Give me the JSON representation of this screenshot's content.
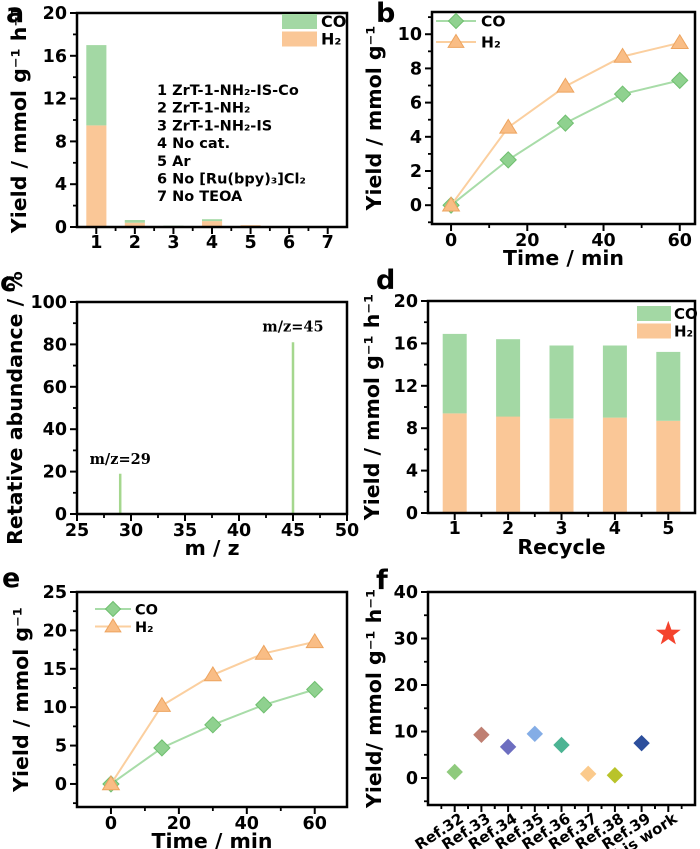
{
  "panels": [
    {
      "letter": "a"
    },
    {
      "letter": "b"
    },
    {
      "letter": "c"
    },
    {
      "letter": "d"
    },
    {
      "letter": "e"
    },
    {
      "letter": "f"
    }
  ],
  "colors": {
    "co_green": "#a3d8a4",
    "h2_orange": "#fac797",
    "frame_black": "#000000",
    "highlight_star_red": "#f4432d"
  },
  "chart_data": [
    {
      "panel": "a",
      "type": "bar",
      "categories": [
        "1",
        "2",
        "3",
        "4",
        "5",
        "6",
        "7"
      ],
      "series": [
        {
          "name": "H₂",
          "color": "#fac797",
          "values": [
            9.5,
            0.4,
            0.06,
            0.55,
            0.18,
            0,
            0
          ]
        },
        {
          "name": "CO",
          "color": "#a3d8a4",
          "values": [
            7.5,
            0.25,
            0.06,
            0.18,
            0,
            0,
            0
          ]
        }
      ],
      "bar_ratio": 0.52,
      "ylim": [
        0,
        20
      ],
      "yticks": [
        0,
        4,
        8,
        12,
        16,
        20
      ],
      "ylabel": "Yield / mmol g⁻¹ h⁻¹",
      "xlabel": "",
      "legend": {
        "style": "swatch",
        "entries": [
          {
            "label": "CO",
            "color": "#a3d8a4"
          },
          {
            "label": "H₂",
            "color": "#fac797"
          }
        ]
      },
      "note_lines": [
        "1 ZrT-1-NH₂-IS-Co",
        "2 ZrT-1-NH₂",
        "3 ZrT-1-NH₂-IS",
        "4 No  cat.",
        "5 Ar",
        "6 No [Ru(bpy)₃]Cl₂",
        "7 No TEOA"
      ]
    },
    {
      "panel": "b",
      "type": "line",
      "x": [
        0,
        15,
        30,
        45,
        60
      ],
      "xlim": [
        -5,
        64
      ],
      "xticks": [
        0,
        20,
        40,
        60
      ],
      "ylim": [
        -1.1,
        11.3
      ],
      "yticks": [
        0,
        2,
        4,
        6,
        8,
        10
      ],
      "series": [
        {
          "name": "CO",
          "marker": "diamond",
          "color": "#8fd18f",
          "edge": "#6fbf6f",
          "line_color": "#a8dca8",
          "values": [
            0,
            2.65,
            4.8,
            6.5,
            7.3
          ]
        },
        {
          "name": "H₂",
          "marker": "triangle",
          "color": "#f9bd85",
          "edge": "#eda45f",
          "line_color": "#fbcf9f",
          "values": [
            0,
            4.55,
            6.95,
            8.7,
            9.5
          ]
        }
      ],
      "ylabel": "Yield / mmol g⁻¹",
      "xlabel": "Time / min",
      "legend": {
        "style": "line",
        "entries": [
          {
            "label": "CO",
            "marker": "diamond",
            "color": "#8fd18f",
            "edge": "#6fbf6f",
            "line_color": "#a8dca8"
          },
          {
            "label": "H₂",
            "marker": "triangle",
            "color": "#f9bd85",
            "edge": "#eda45f",
            "line_color": "#fbcf9f"
          }
        ]
      }
    },
    {
      "panel": "c",
      "type": "sticks",
      "xlim": [
        25,
        50
      ],
      "xticks": [
        25,
        30,
        35,
        40,
        45,
        50
      ],
      "ylim": [
        0,
        100
      ],
      "yticks": [
        0,
        20,
        40,
        60,
        80,
        100
      ],
      "stick_color": "#a5d78e",
      "peaks": [
        {
          "x": 29,
          "y": 19
        },
        {
          "x": 45,
          "y": 81
        }
      ],
      "annotations": [
        {
          "text": "m/z=29",
          "x": 29,
          "y": 23.5
        },
        {
          "text": "m/z=45",
          "x": 45,
          "y": 86
        }
      ],
      "ylabel": "Retative abundance / %",
      "xlabel": "m / z"
    },
    {
      "panel": "d",
      "type": "bar",
      "categories": [
        "1",
        "2",
        "3",
        "4",
        "5"
      ],
      "series": [
        {
          "name": "H₂",
          "color": "#fac797",
          "values": [
            9.4,
            9.1,
            8.9,
            9.0,
            8.7
          ]
        },
        {
          "name": "CO",
          "color": "#a3d8a4",
          "values": [
            7.5,
            7.3,
            6.9,
            6.8,
            6.5
          ]
        }
      ],
      "bar_ratio": 0.45,
      "ylim": [
        0,
        20
      ],
      "yticks": [
        0,
        4,
        8,
        12,
        16,
        20
      ],
      "ylabel": "Yield / mmol g⁻¹ h⁻¹",
      "xlabel": "Recycle",
      "legend": {
        "style": "swatch",
        "entries": [
          {
            "label": "CO",
            "color": "#a3d8a4"
          },
          {
            "label": "H₂",
            "color": "#fac797"
          }
        ]
      }
    },
    {
      "panel": "e",
      "type": "line",
      "x": [
        0,
        15,
        30,
        45,
        60
      ],
      "xlim": [
        -10,
        69.5
      ],
      "xticks": [
        0,
        20,
        40,
        60
      ],
      "ylim": [
        -3,
        25
      ],
      "yticks": [
        0,
        5,
        10,
        15,
        20,
        25
      ],
      "series": [
        {
          "name": "CO",
          "marker": "diamond",
          "color": "#8fd18f",
          "edge": "#6fbf6f",
          "line_color": "#a8dca8",
          "values": [
            0,
            4.7,
            7.7,
            10.3,
            12.3
          ]
        },
        {
          "name": "H₂",
          "marker": "triangle",
          "color": "#f9bd85",
          "edge": "#eda45f",
          "line_color": "#fbcf9f",
          "values": [
            0,
            10.2,
            14.2,
            17.0,
            18.5
          ]
        }
      ],
      "ylabel": "Yield / mmol g⁻¹",
      "xlabel": "Time / min",
      "legend": {
        "style": "line",
        "entries": [
          {
            "label": "CO",
            "marker": "diamond",
            "color": "#8fd18f",
            "edge": "#6fbf6f",
            "line_color": "#a8dca8"
          },
          {
            "label": "H₂",
            "marker": "triangle",
            "color": "#f9bd85",
            "edge": "#eda45f",
            "line_color": "#fbcf9f"
          }
        ]
      }
    },
    {
      "panel": "f",
      "type": "scatter",
      "xlim": [
        0,
        10
      ],
      "ylim": [
        -5.8,
        40
      ],
      "yticks": [
        0,
        10,
        20,
        30,
        40
      ],
      "points": [
        {
          "label": "Ref.32",
          "x": 1,
          "value": 1.3,
          "marker": "diamond",
          "color": "#8fca7d"
        },
        {
          "label": "Ref.33",
          "x": 2,
          "value": 9.3,
          "marker": "diamond",
          "color": "#bf7f72"
        },
        {
          "label": "Ref.34",
          "x": 3,
          "value": 6.7,
          "marker": "diamond",
          "color": "#6d6ec0"
        },
        {
          "label": "Ref.35",
          "x": 4,
          "value": 9.5,
          "marker": "diamond",
          "color": "#84ade6"
        },
        {
          "label": "Ref.36",
          "x": 5,
          "value": 7.1,
          "marker": "diamond",
          "color": "#4cb493"
        },
        {
          "label": "Ref.37",
          "x": 6,
          "value": 0.9,
          "marker": "diamond",
          "color": "#fbca8c"
        },
        {
          "label": "Ref.38",
          "x": 7,
          "value": 0.6,
          "marker": "diamond",
          "color": "#b9c32a"
        },
        {
          "label": "Ref.39",
          "x": 8,
          "value": 7.5,
          "marker": "diamond",
          "color": "#2d4f9c"
        },
        {
          "label": "This work",
          "x": 9,
          "value": 31,
          "marker": "star",
          "color": "#f4432d"
        }
      ],
      "ylabel": "Yield/ mmol g⁻¹ h⁻¹",
      "xlabel": "",
      "rotate_xlabels": true
    }
  ]
}
